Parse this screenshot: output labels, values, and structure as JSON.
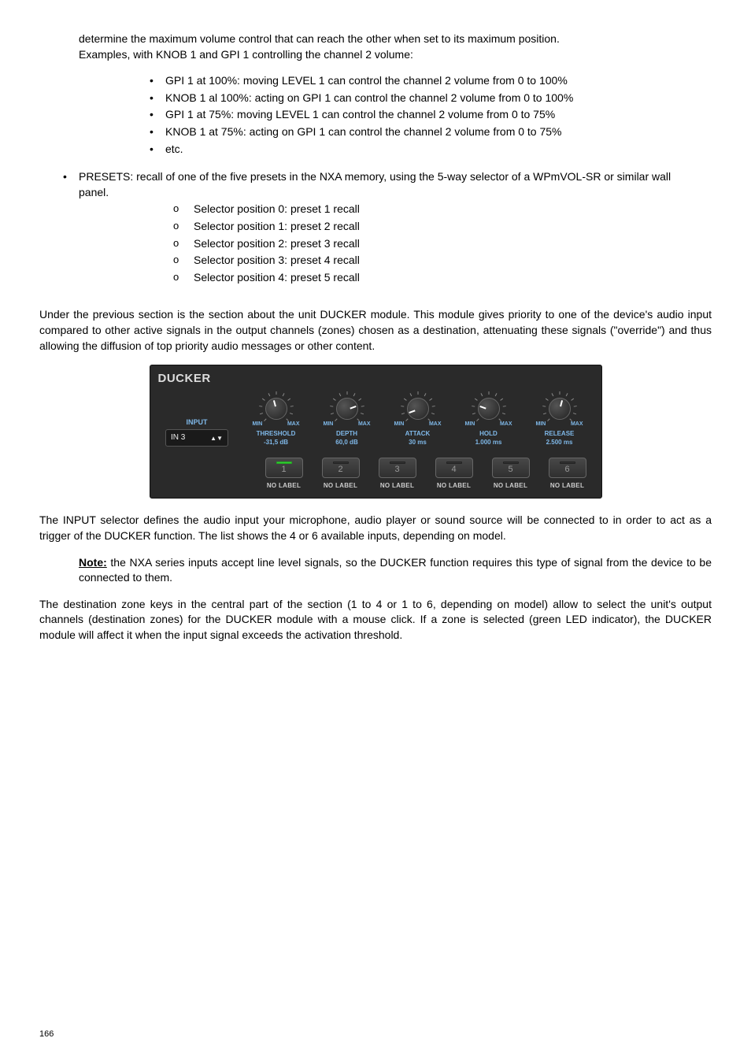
{
  "intro_lines": [
    "determine the maximum volume control that can reach the other when set to its maximum position.",
    "Examples, with KNOB 1 and  GPI 1 controlling the channel 2 volume:"
  ],
  "example_bullets": [
    "GPI 1 at 100%: moving LEVEL 1 can control the channel 2 volume from 0 to 100%",
    "KNOB 1 al 100%: acting on GPI 1 can control the channel 2 volume from 0 to 100%",
    "GPI 1 at 75%: moving LEVEL 1 can control the channel 2 volume from 0 to 75%",
    "KNOB 1 at 75%: acting on GPI 1 can control the channel 2 volume from 0 to 75%",
    "etc."
  ],
  "presets_intro": "PRESETS: recall of one of the five presets in the NXA memory, using the 5-way selector of a WPmVOL-SR or similar wall panel.",
  "presets_list": [
    "Selector position 0: preset 1 recall",
    "Selector position 1: preset 2 recall",
    "Selector position 2: preset 3 recall",
    "Selector position 3: preset 4 recall",
    "Selector position 4: preset 5 recall"
  ],
  "ducker_intro": "Under the previous section is the section about the unit DUCKER module. This module gives priority to one of the device's audio input compared to other active signals in the output channels (zones) chosen as a destination, attenuating these signals (\"override\") and thus allowing the diffusion of top priority audio messages or other content.",
  "panel": {
    "title": "DUCKER",
    "input_label": "INPUT",
    "input_value": "IN 3",
    "min_label": "MIN",
    "max_label": "MAX",
    "knobs": [
      {
        "label": "THRESHOLD",
        "value": "-31,5 dB",
        "rotation": -15
      },
      {
        "label": "DEPTH",
        "value": "60,0 dB",
        "rotation": 70
      },
      {
        "label": "ATTACK",
        "value": "30 ms",
        "rotation": -110
      },
      {
        "label": "HOLD",
        "value": "1.000 ms",
        "rotation": -70
      },
      {
        "label": "RELEASE",
        "value": "2.500 ms",
        "rotation": 15
      }
    ],
    "zones": [
      {
        "num": "1",
        "label": "NO LABEL",
        "on": true
      },
      {
        "num": "2",
        "label": "NO LABEL",
        "on": false
      },
      {
        "num": "3",
        "label": "NO LABEL",
        "on": false
      },
      {
        "num": "4",
        "label": "NO LABEL",
        "on": false
      },
      {
        "num": "5",
        "label": "NO LABEL",
        "on": false
      },
      {
        "num": "6",
        "label": "NO LABEL",
        "on": false
      }
    ]
  },
  "post_panel_1": "The INPUT selector defines the audio input your microphone, audio player or sound source will be connected to in order to act as a trigger of the DUCKER function. The list shows the 4 or 6 available inputs, depending on model.",
  "note_label": "Note:",
  "note_text": " the NXA series inputs accept line level signals, so the DUCKER function requires this type of signal from the device to be connected to them.",
  "post_panel_2": "The destination zone keys in the central part of the section (1 to 4 or 1 to 6, depending on model) allow to select the unit's output channels (destination zones) for the DUCKER module with a mouse click. If a zone is selected (green LED indicator), the DUCKER module will affect it when the input signal exceeds the activation threshold.",
  "page_number": "166"
}
